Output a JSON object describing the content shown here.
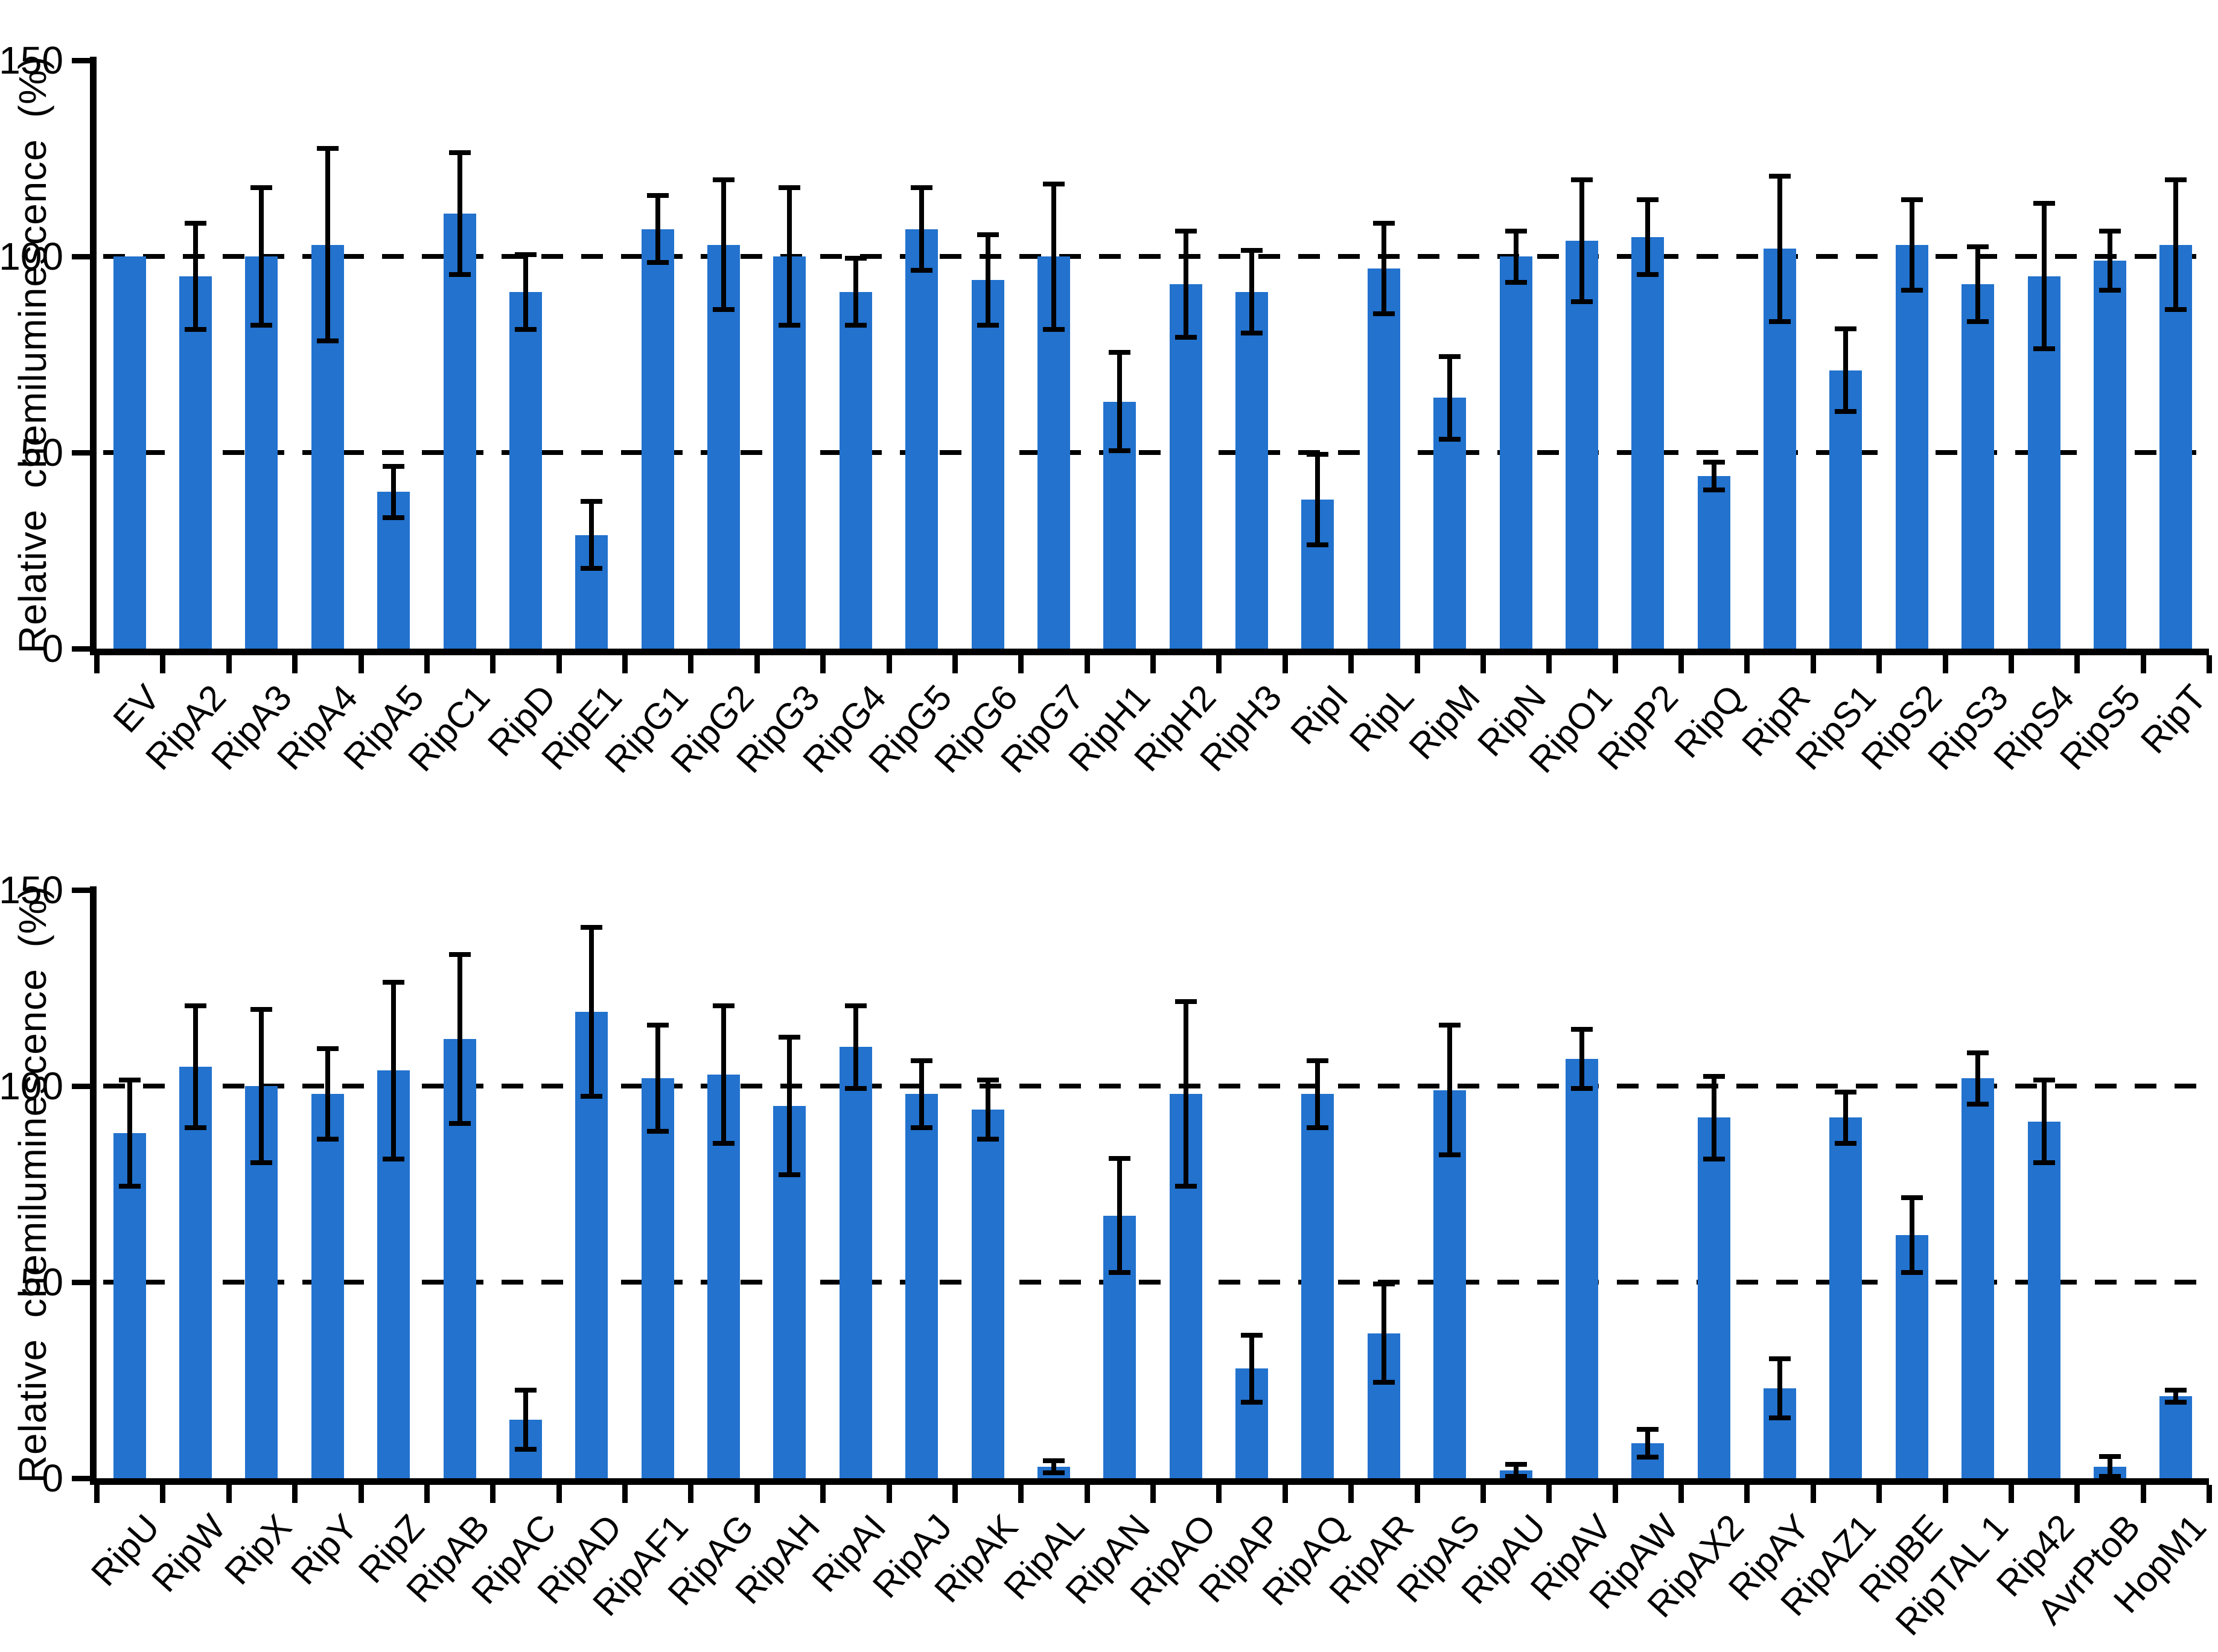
{
  "figure": {
    "y_axis_title": "Relative chemiluminescence (%)",
    "bar_color": "#2272CE",
    "axis_color": "#000000"
  },
  "chart_data": [
    {
      "type": "bar",
      "panel": "top",
      "title": "",
      "xlabel": "",
      "ylabel": "Relative chemiluminescence (%)",
      "ylim": [
        0,
        150
      ],
      "yticks": [
        150,
        100,
        50,
        0
      ],
      "dashed_gridlines_at": [
        100,
        50
      ],
      "grid": "dashed horizontal at 50 and 100",
      "legend": null,
      "error_bars": "symmetric, capped",
      "categories": [
        "EV",
        "RipA2",
        "RipA3",
        "RipA4",
        "RipA5",
        "RipC1",
        "RipD",
        "RipE1",
        "RipG1",
        "RipG2",
        "RipG3",
        "RipG4",
        "RipG5",
        "RipG6",
        "RipG7",
        "RipH1",
        "RipH2",
        "RipH3",
        "RipI",
        "RipL",
        "RipM",
        "RipN",
        "RipO1",
        "RipP2",
        "RipQ",
        "RipR",
        "RipS1",
        "RipS2",
        "RipS3",
        "RipS4",
        "RipS5",
        "RipT"
      ],
      "values": [
        100,
        95,
        100,
        103,
        40,
        111,
        91,
        29,
        107,
        103,
        100,
        91,
        107,
        94,
        100,
        63,
        93,
        91,
        38,
        97,
        64,
        100,
        104,
        105,
        44,
        102,
        71,
        103,
        93,
        95,
        99,
        103
      ],
      "errors": [
        0,
        14,
        18,
        25,
        7,
        16,
        10,
        9,
        9,
        17,
        18,
        9,
        11,
        12,
        19,
        13,
        14,
        11,
        12,
        12,
        11,
        7,
        16,
        10,
        4,
        19,
        11,
        12,
        10,
        19,
        8,
        17
      ]
    },
    {
      "type": "bar",
      "panel": "bottom",
      "title": "",
      "xlabel": "",
      "ylabel": "Relative chemiluminescence (%)",
      "ylim": [
        0,
        150
      ],
      "yticks": [
        150,
        100,
        50,
        0
      ],
      "dashed_gridlines_at": [
        100,
        50
      ],
      "grid": "dashed horizontal at 50 and 100",
      "legend": null,
      "error_bars": "symmetric, capped",
      "categories": [
        "RipU",
        "RipW",
        "RipX",
        "RipY",
        "RipZ",
        "RipAB",
        "RipAC",
        "RipAD",
        "RipAF1",
        "RipAG",
        "RipAH",
        "RipAI",
        "RipAJ",
        "RipAK",
        "RipAL",
        "RipAN",
        "RipAO",
        "RipAP",
        "RipAQ",
        "RipAR",
        "RipAS",
        "RipAU",
        "RipAV",
        "RipAW",
        "RipAX2",
        "RipAY",
        "RipAZ1",
        "RipBE",
        "RipTAL 1",
        "Rip42",
        "AvrPtoB",
        "HopM1"
      ],
      "values": [
        88,
        105,
        100,
        98,
        104,
        112,
        15,
        119,
        102,
        103,
        95,
        110,
        98,
        94,
        3,
        67,
        98,
        28,
        98,
        37,
        99,
        2,
        107,
        9,
        92,
        23,
        92,
        62,
        102,
        91,
        3,
        21
      ],
      "errors": [
        14,
        16,
        20,
        12,
        23,
        22,
        8,
        22,
        14,
        18,
        18,
        11,
        9,
        8,
        2,
        15,
        24,
        9,
        9,
        13,
        17,
        2,
        8,
        4,
        11,
        8,
        7,
        10,
        7,
        11,
        3,
        2
      ]
    }
  ]
}
